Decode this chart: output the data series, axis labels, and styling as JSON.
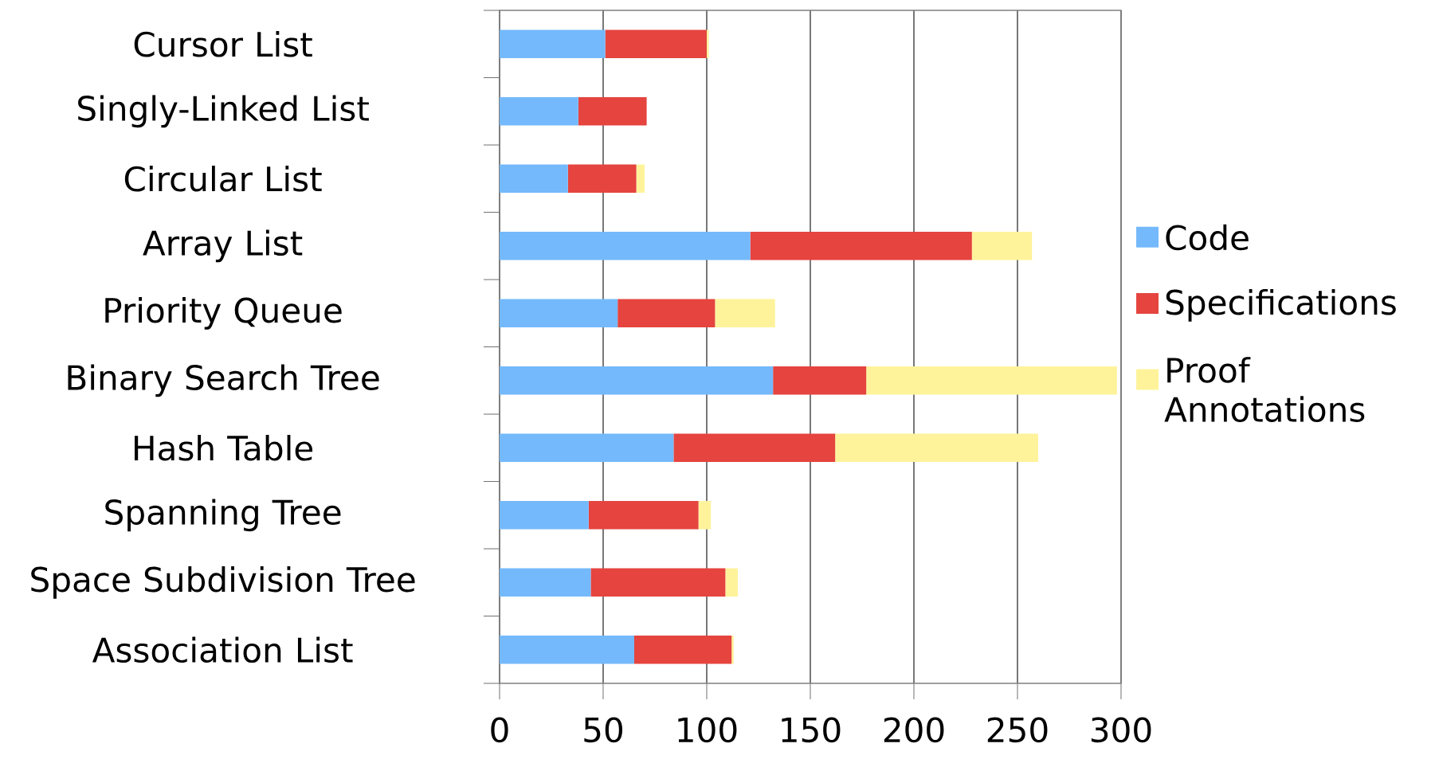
{
  "chart_data": {
    "type": "bar",
    "orientation": "horizontal",
    "stacked": true,
    "categories": [
      "Cursor List",
      "Singly-Linked List",
      "Circular List",
      "Array List",
      "Priority Queue",
      "Binary Search Tree",
      "Hash Table",
      "Spanning Tree",
      "Space Subdivision Tree",
      "Association List"
    ],
    "series": [
      {
        "name": "Code",
        "color": "#74b9fc",
        "values": [
          51,
          38,
          33,
          121,
          57,
          132,
          84,
          43,
          44,
          65
        ]
      },
      {
        "name": "Specifications",
        "color": "#e5443f",
        "values": [
          49,
          33,
          33,
          107,
          47,
          45,
          78,
          53,
          65,
          47
        ]
      },
      {
        "name": "Proof Annotations",
        "color": "#fef39b",
        "values": [
          1,
          0,
          4,
          29,
          29,
          121,
          98,
          6,
          6,
          1
        ]
      }
    ],
    "xlim": [
      0,
      300
    ],
    "xticks": [
      0,
      50,
      100,
      150,
      200,
      250,
      300
    ],
    "grid": "x",
    "legend": "right"
  }
}
